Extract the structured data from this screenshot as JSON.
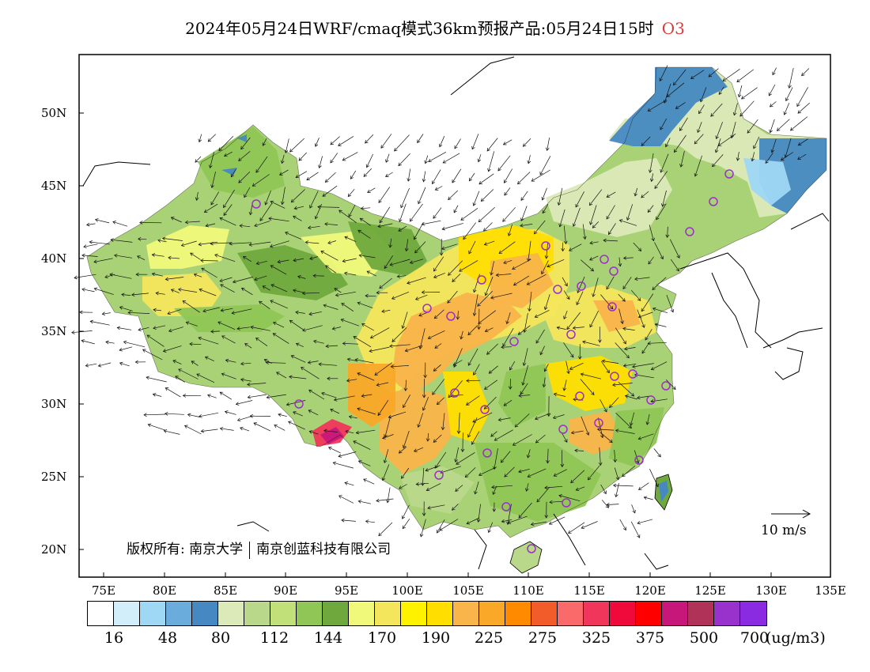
{
  "title": {
    "text": "2024年05月24日WRF/cmaq模式36km预报产品:05月24日15时",
    "species": "O3",
    "species_color": "#d83a3a"
  },
  "map": {
    "lon_ticks": [
      "75E",
      "80E",
      "85E",
      "90E",
      "95E",
      "100E",
      "105E",
      "110E",
      "115E",
      "120E",
      "125E",
      "130E",
      "135E"
    ],
    "lat_ticks": [
      "50N",
      "45N",
      "40N",
      "35N",
      "30N",
      "25N",
      "20N"
    ],
    "copyright_left": "版权所有: 南京大学",
    "copyright_right": "南京创蓝科技有限公司",
    "wind_scale_label": "10 m/s"
  },
  "colorbar": {
    "colors": [
      "#ffffff",
      "#d2eefa",
      "#9fd8f5",
      "#6aaddc",
      "#4689c2",
      "#dce9b8",
      "#b9d88a",
      "#c2e07a",
      "#8fc655",
      "#6fa93d",
      "#f0f97a",
      "#f4e65c",
      "#fff200",
      "#ffde00",
      "#f9b44a",
      "#f9a828",
      "#ff8a00",
      "#f25c2b",
      "#fa6a6a",
      "#f0365a",
      "#f00a3c",
      "#ff0000",
      "#c8177a",
      "#b03259",
      "#9932cc",
      "#8a2be2"
    ],
    "labels": [
      "16",
      "48",
      "80",
      "112",
      "144",
      "170",
      "190",
      "225",
      "275",
      "325",
      "375",
      "500",
      "700"
    ],
    "unit": "(ug/m3)"
  },
  "stations": {
    "marker_color": "#9b2fc9"
  }
}
